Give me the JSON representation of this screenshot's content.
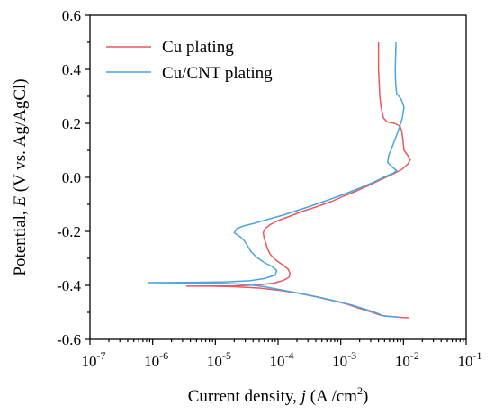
{
  "chart_data": {
    "type": "line",
    "xlabel_prefix": "Current density, ",
    "xlabel_var": "j",
    "xlabel_unit_open": " (A /cm",
    "xlabel_unit_sup": "2",
    "xlabel_unit_close": ")",
    "ylabel_prefix": "Potential, ",
    "ylabel_var": "E",
    "ylabel_suffix": " (V vs. Ag/AgCl)",
    "x_scale": "log",
    "xlim": [
      1e-07,
      0.1
    ],
    "ylim": [
      -0.6,
      0.6
    ],
    "grid": false,
    "legend_position": "top-left",
    "y_ticks": [
      {
        "value": 0.6,
        "label": "0.6"
      },
      {
        "value": 0.4,
        "label": "0.4"
      },
      {
        "value": 0.2,
        "label": "0.2"
      },
      {
        "value": 0.0,
        "label": "0.0"
      },
      {
        "value": -0.2,
        "label": "-0.2"
      },
      {
        "value": -0.4,
        "label": "-0.4"
      },
      {
        "value": -0.6,
        "label": "-0.6"
      }
    ],
    "x_ticks": [
      {
        "value": 1e-07,
        "base": "10",
        "exp": "-7"
      },
      {
        "value": 1e-06,
        "base": "10",
        "exp": "-6"
      },
      {
        "value": 1e-05,
        "base": "10",
        "exp": "-5"
      },
      {
        "value": 0.0001,
        "base": "10",
        "exp": "-4"
      },
      {
        "value": 0.001,
        "base": "10",
        "exp": "-3"
      },
      {
        "value": 0.01,
        "base": "10",
        "exp": "-2"
      },
      {
        "value": 0.1,
        "base": "10",
        "exp": "-1"
      }
    ],
    "series": [
      {
        "name": "Cu plating",
        "color": "#e8595e",
        "points": [
          [
            0.0125,
            -0.52
          ],
          [
            0.01,
            -0.519
          ],
          [
            0.0068,
            -0.516
          ],
          [
            0.0055,
            -0.514
          ],
          [
            0.0046,
            -0.512
          ],
          [
            0.004,
            -0.508
          ],
          [
            0.0032,
            -0.5
          ],
          [
            0.0025,
            -0.492
          ],
          [
            0.0018,
            -0.482
          ],
          [
            0.0012,
            -0.468
          ],
          [
            0.0007,
            -0.455
          ],
          [
            0.0004,
            -0.442
          ],
          [
            0.0002,
            -0.428
          ],
          [
            0.0001,
            -0.418
          ],
          [
            5e-05,
            -0.41
          ],
          [
            2e-05,
            -0.405
          ],
          [
            8e-06,
            -0.403
          ],
          [
            3.5e-06,
            -0.403
          ],
          [
            2e-05,
            -0.402
          ],
          [
            5e-05,
            -0.398
          ],
          [
            8.5e-05,
            -0.392
          ],
          [
            0.00012,
            -0.382
          ],
          [
            0.00015,
            -0.37
          ],
          [
            0.000155,
            -0.355
          ],
          [
            0.000145,
            -0.34
          ],
          [
            0.00012,
            -0.325
          ],
          [
            9e-05,
            -0.305
          ],
          [
            7.5e-05,
            -0.285
          ],
          [
            6.8e-05,
            -0.265
          ],
          [
            6.4e-05,
            -0.245
          ],
          [
            6e-05,
            -0.225
          ],
          [
            5.8e-05,
            -0.205
          ],
          [
            6.2e-05,
            -0.19
          ],
          [
            7.5e-05,
            -0.175
          ],
          [
            0.0001,
            -0.16
          ],
          [
            0.00015,
            -0.145
          ],
          [
            0.00025,
            -0.125
          ],
          [
            0.0004,
            -0.11
          ],
          [
            0.0007,
            -0.09
          ],
          [
            0.0011,
            -0.07
          ],
          [
            0.0018,
            -0.05
          ],
          [
            0.0028,
            -0.03
          ],
          [
            0.0042,
            -0.01
          ],
          [
            0.0065,
            0.01
          ],
          [
            0.0095,
            0.03
          ],
          [
            0.0118,
            0.05
          ],
          [
            0.0128,
            0.065
          ],
          [
            0.0118,
            0.08
          ],
          [
            0.0102,
            0.1
          ],
          [
            0.0098,
            0.14
          ],
          [
            0.0094,
            0.17
          ],
          [
            0.0088,
            0.19
          ],
          [
            0.0072,
            0.2
          ],
          [
            0.0055,
            0.205
          ],
          [
            0.0048,
            0.22
          ],
          [
            0.0044,
            0.26
          ],
          [
            0.0042,
            0.3
          ],
          [
            0.0041,
            0.35
          ],
          [
            0.004,
            0.4
          ],
          [
            0.004,
            0.45
          ],
          [
            0.004,
            0.5
          ]
        ]
      },
      {
        "name": "Cu/CNT plating",
        "color": "#4aa3e2",
        "points": [
          [
            0.0085,
            -0.518
          ],
          [
            0.0068,
            -0.516
          ],
          [
            0.0055,
            -0.514
          ],
          [
            0.0046,
            -0.512
          ],
          [
            0.004,
            -0.505
          ],
          [
            0.003,
            -0.495
          ],
          [
            0.0022,
            -0.485
          ],
          [
            0.0015,
            -0.473
          ],
          [
            0.0009,
            -0.46
          ],
          [
            0.0005,
            -0.446
          ],
          [
            0.00025,
            -0.432
          ],
          [
            0.00012,
            -0.418
          ],
          [
            6e-05,
            -0.405
          ],
          [
            3e-05,
            -0.396
          ],
          [
            1e-05,
            -0.392
          ],
          [
            3e-06,
            -0.391
          ],
          [
            8.5e-07,
            -0.39
          ],
          [
            4e-06,
            -0.389
          ],
          [
            1.5e-05,
            -0.387
          ],
          [
            3.5e-05,
            -0.383
          ],
          [
            6e-05,
            -0.375
          ],
          [
            9e-05,
            -0.362
          ],
          [
            9.5e-05,
            -0.345
          ],
          [
            8e-05,
            -0.33
          ],
          [
            6e-05,
            -0.315
          ],
          [
            4.5e-05,
            -0.295
          ],
          [
            3.7e-05,
            -0.275
          ],
          [
            3.3e-05,
            -0.255
          ],
          [
            2.9e-05,
            -0.235
          ],
          [
            2.5e-05,
            -0.22
          ],
          [
            2e-05,
            -0.205
          ],
          [
            2.2e-05,
            -0.19
          ],
          [
            2.8e-05,
            -0.18
          ],
          [
            4.2e-05,
            -0.17
          ],
          [
            7e-05,
            -0.155
          ],
          [
            0.00012,
            -0.14
          ],
          [
            0.00022,
            -0.12
          ],
          [
            0.0004,
            -0.1
          ],
          [
            0.0007,
            -0.08
          ],
          [
            0.0012,
            -0.06
          ],
          [
            0.002,
            -0.04
          ],
          [
            0.0032,
            -0.02
          ],
          [
            0.0048,
            0.0
          ],
          [
            0.0068,
            0.015
          ],
          [
            0.0078,
            0.025
          ],
          [
            0.0065,
            0.04
          ],
          [
            0.0056,
            0.055
          ],
          [
            0.0058,
            0.08
          ],
          [
            0.0068,
            0.12
          ],
          [
            0.0082,
            0.17
          ],
          [
            0.0096,
            0.22
          ],
          [
            0.0102,
            0.26
          ],
          [
            0.0092,
            0.29
          ],
          [
            0.0078,
            0.31
          ],
          [
            0.0075,
            0.35
          ],
          [
            0.0074,
            0.4
          ],
          [
            0.0075,
            0.45
          ],
          [
            0.0076,
            0.5
          ]
        ]
      }
    ]
  }
}
